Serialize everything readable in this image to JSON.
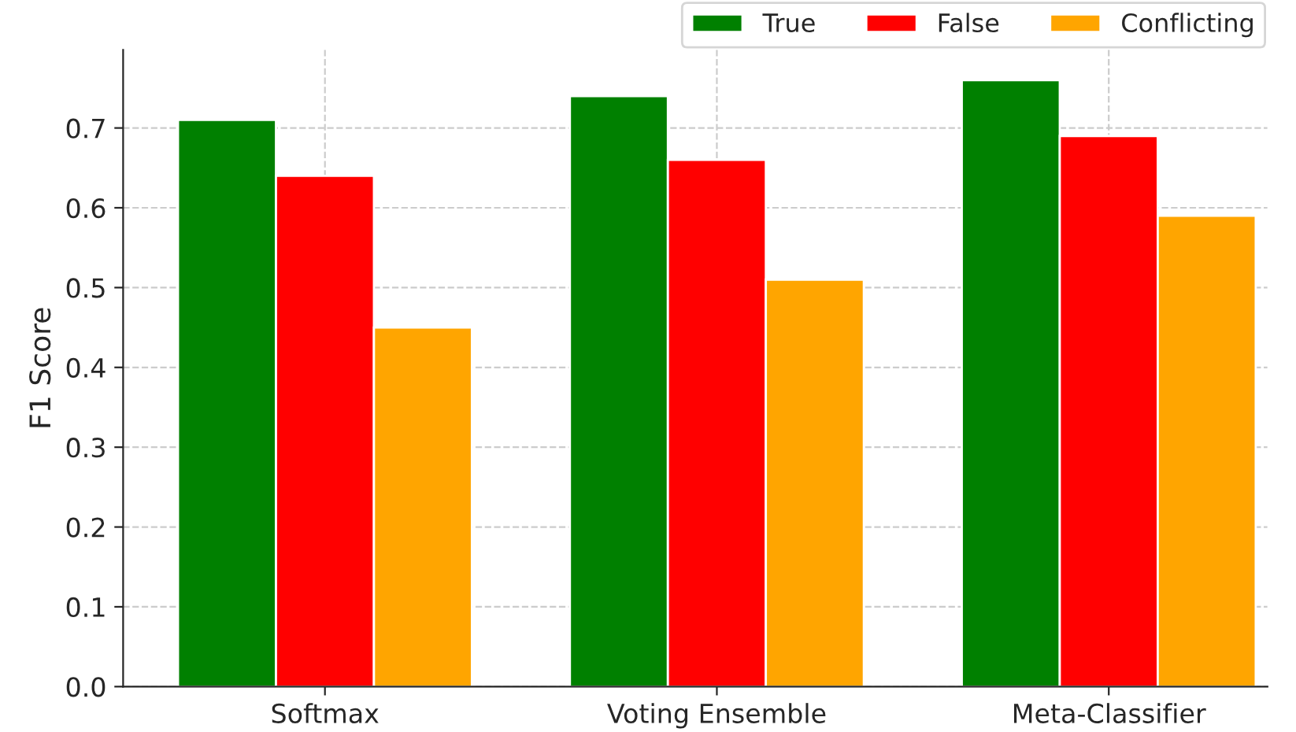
{
  "chart_data": {
    "type": "bar",
    "ylabel": "F1 Score",
    "categories": [
      "Softmax",
      "Voting Ensemble",
      "Meta-Classifier"
    ],
    "series": [
      {
        "name": "True",
        "color": "#008000",
        "values": [
          0.71,
          0.74,
          0.76
        ]
      },
      {
        "name": "False",
        "color": "#ff0000",
        "values": [
          0.64,
          0.66,
          0.69
        ]
      },
      {
        "name": "Conflicting",
        "color": "#ffa500",
        "values": [
          0.45,
          0.51,
          0.59
        ]
      }
    ],
    "ylim": [
      0,
      0.798
    ],
    "yticks": [
      {
        "value": 0,
        "label": "0.0"
      },
      0.1,
      0.2,
      0.3,
      0.4,
      0.5,
      0.6,
      0.7
    ],
    "grid": true,
    "legend": "top right"
  }
}
